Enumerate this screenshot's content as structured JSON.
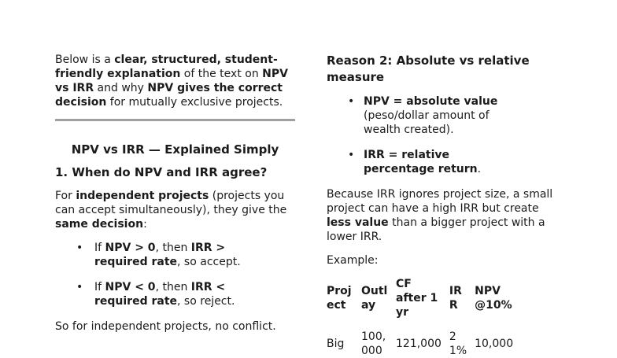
{
  "colors": {
    "background": "#ffffff",
    "text": "#1b1b1b",
    "divider": "#a0a0a0"
  },
  "left": {
    "intro_runs": [
      {
        "text": "Below is a ",
        "bold": false
      },
      {
        "text": "clear, structured, student-friendly explanation",
        "bold": true
      },
      {
        "text": " of the text on ",
        "bold": false
      },
      {
        "text": "NPV vs IRR",
        "bold": true
      },
      {
        "text": " and why ",
        "bold": false
      },
      {
        "text": "NPV gives the correct decision",
        "bold": true
      },
      {
        "text": " for mutually exclusive projects.",
        "bold": false
      }
    ],
    "section_title": "NPV vs IRR — Explained Simply",
    "q1_heading": "1. When do NPV and IRR agree?",
    "q1_intro_runs": [
      {
        "text": "For ",
        "bold": false
      },
      {
        "text": "independent projects",
        "bold": true
      },
      {
        "text": " (projects you can accept simultaneously), they give the ",
        "bold": false
      },
      {
        "text": "same decision",
        "bold": true
      },
      {
        "text": ":",
        "bold": false
      }
    ],
    "bullet_glyph": "•",
    "bullets": [
      [
        {
          "text": "If ",
          "bold": false
        },
        {
          "text": "NPV > 0",
          "bold": true
        },
        {
          "text": ", then ",
          "bold": false
        },
        {
          "text": "IRR > required rate",
          "bold": true
        },
        {
          "text": ", so accept.",
          "bold": false
        }
      ],
      [
        {
          "text": "If ",
          "bold": false
        },
        {
          "text": "NPV < 0",
          "bold": true
        },
        {
          "text": ", then ",
          "bold": false
        },
        {
          "text": "IRR < required rate",
          "bold": true
        },
        {
          "text": ", so reject.",
          "bold": false
        }
      ]
    ],
    "q1_outro": "So for independent projects, no conflict."
  },
  "right": {
    "reason2_heading": "Reason 2: Absolute vs relative measure",
    "bullet_glyph": "•",
    "bullets": [
      [
        {
          "text": "NPV = absolute value",
          "bold": true
        },
        {
          "text": " (peso/dollar amount of wealth created).",
          "bold": false
        }
      ],
      [
        {
          "text": "IRR = relative percentage return",
          "bold": true
        },
        {
          "text": ".",
          "bold": false
        }
      ]
    ],
    "size_paragraph_runs": [
      {
        "text": "Because IRR ignores project size, a small project can have a high IRR but create ",
        "bold": false
      },
      {
        "text": "less value",
        "bold": true
      },
      {
        "text": " than a bigger project with a lower IRR.",
        "bold": false
      }
    ],
    "example_label": "Example:",
    "table": {
      "headers": [
        "Project",
        "Outlay",
        "CF after 1 yr",
        "IRR",
        "NPV @10%"
      ],
      "rows": [
        [
          "Big",
          "100,000",
          "121,000",
          "21%",
          "10,000"
        ]
      ]
    }
  }
}
